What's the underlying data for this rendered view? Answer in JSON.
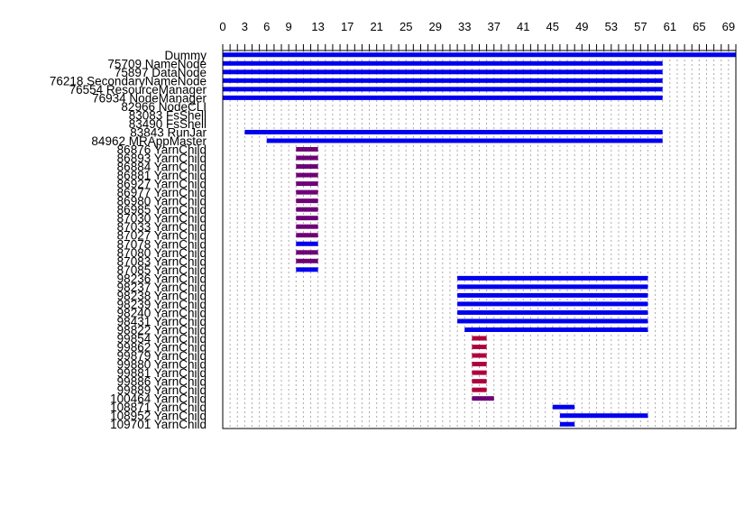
{
  "chart_data": {
    "type": "gantt",
    "title": "",
    "xlabel": "",
    "ylabel": "",
    "xlim": [
      0,
      70
    ],
    "x_ticks": [
      0,
      3,
      6,
      9,
      13,
      17,
      21,
      25,
      29,
      33,
      37,
      41,
      45,
      49,
      53,
      57,
      61,
      65,
      69
    ],
    "x_axis_position": "top",
    "grid": "vertical dotted at every unit",
    "colors": {
      "blue": "#0000ee",
      "purple": "#6e0077",
      "crimson": "#b0003c"
    },
    "rows": [
      {
        "label": "Dummy",
        "start": 0,
        "end": 70,
        "color": "blue"
      },
      {
        "label": "75709 NameNode",
        "start": 0,
        "end": 60,
        "color": "blue"
      },
      {
        "label": "75897 DataNode",
        "start": 0,
        "end": 60,
        "color": "blue"
      },
      {
        "label": "76218 SecondaryNameNode",
        "start": 0,
        "end": 60,
        "color": "blue"
      },
      {
        "label": "76554 ResourceManager",
        "start": 0,
        "end": 60,
        "color": "blue"
      },
      {
        "label": "76934 NodeManager",
        "start": 0,
        "end": 60,
        "color": "blue"
      },
      {
        "label": "82966 NodeCLI",
        "start": null,
        "end": null,
        "color": "blue"
      },
      {
        "label": "83083 FsShell",
        "start": null,
        "end": null,
        "color": "blue"
      },
      {
        "label": "83490 FsShell",
        "start": null,
        "end": null,
        "color": "blue"
      },
      {
        "label": "83843 RunJar",
        "start": 3,
        "end": 60,
        "color": "blue"
      },
      {
        "label": "84962 MRAppMaster",
        "start": 6,
        "end": 60,
        "color": "blue"
      },
      {
        "label": "86876 YarnChild",
        "start": 10,
        "end": 13,
        "color": "purple"
      },
      {
        "label": "86893 YarnChild",
        "start": 10,
        "end": 13,
        "color": "purple"
      },
      {
        "label": "86884 YarnChild",
        "start": 10,
        "end": 13,
        "color": "purple"
      },
      {
        "label": "86881 YarnChild",
        "start": 10,
        "end": 13,
        "color": "purple"
      },
      {
        "label": "86927 YarnChild",
        "start": 10,
        "end": 13,
        "color": "purple"
      },
      {
        "label": "86977 YarnChild",
        "start": 10,
        "end": 13,
        "color": "purple"
      },
      {
        "label": "86980 YarnChild",
        "start": 10,
        "end": 13,
        "color": "purple"
      },
      {
        "label": "86985 YarnChild",
        "start": 10,
        "end": 13,
        "color": "purple"
      },
      {
        "label": "87030 YarnChild",
        "start": 10,
        "end": 13,
        "color": "purple"
      },
      {
        "label": "87033 YarnChild",
        "start": 10,
        "end": 13,
        "color": "purple"
      },
      {
        "label": "87027 YarnChild",
        "start": 10,
        "end": 13,
        "color": "purple"
      },
      {
        "label": "87078 YarnChild",
        "start": 10,
        "end": 13,
        "color": "blue"
      },
      {
        "label": "87080 YarnChild",
        "start": 10,
        "end": 13,
        "color": "purple"
      },
      {
        "label": "87083 YarnChild",
        "start": 10,
        "end": 13,
        "color": "purple"
      },
      {
        "label": "87085 YarnChild",
        "start": 10,
        "end": 13,
        "color": "blue"
      },
      {
        "label": "98236 YarnChild",
        "start": 32,
        "end": 58,
        "color": "blue"
      },
      {
        "label": "98237 YarnChild",
        "start": 32,
        "end": 58,
        "color": "blue"
      },
      {
        "label": "98238 YarnChild",
        "start": 32,
        "end": 58,
        "color": "blue"
      },
      {
        "label": "98239 YarnChild",
        "start": 32,
        "end": 58,
        "color": "blue"
      },
      {
        "label": "98240 YarnChild",
        "start": 32,
        "end": 58,
        "color": "blue"
      },
      {
        "label": "98431 YarnChild",
        "start": 32,
        "end": 58,
        "color": "blue"
      },
      {
        "label": "98822 YarnChild",
        "start": 33,
        "end": 58,
        "color": "blue"
      },
      {
        "label": "99854 YarnChild",
        "start": 34,
        "end": 36,
        "color": "crimson"
      },
      {
        "label": "99862 YarnChild",
        "start": 34,
        "end": 36,
        "color": "crimson"
      },
      {
        "label": "99879 YarnChild",
        "start": 34,
        "end": 36,
        "color": "crimson"
      },
      {
        "label": "99880 YarnChild",
        "start": 34,
        "end": 36,
        "color": "crimson"
      },
      {
        "label": "99881 YarnChild",
        "start": 34,
        "end": 36,
        "color": "crimson"
      },
      {
        "label": "99886 YarnChild",
        "start": 34,
        "end": 36,
        "color": "crimson"
      },
      {
        "label": "99889 YarnChild",
        "start": 34,
        "end": 36,
        "color": "crimson"
      },
      {
        "label": "100464 YarnChild",
        "start": 34,
        "end": 37,
        "color": "purple"
      },
      {
        "label": "108871 YarnChild",
        "start": 45,
        "end": 48,
        "color": "blue"
      },
      {
        "label": "108952 YarnChild",
        "start": 46,
        "end": 58,
        "color": "blue"
      },
      {
        "label": "109701 YarnChild",
        "start": 46,
        "end": 48,
        "color": "blue"
      }
    ]
  }
}
